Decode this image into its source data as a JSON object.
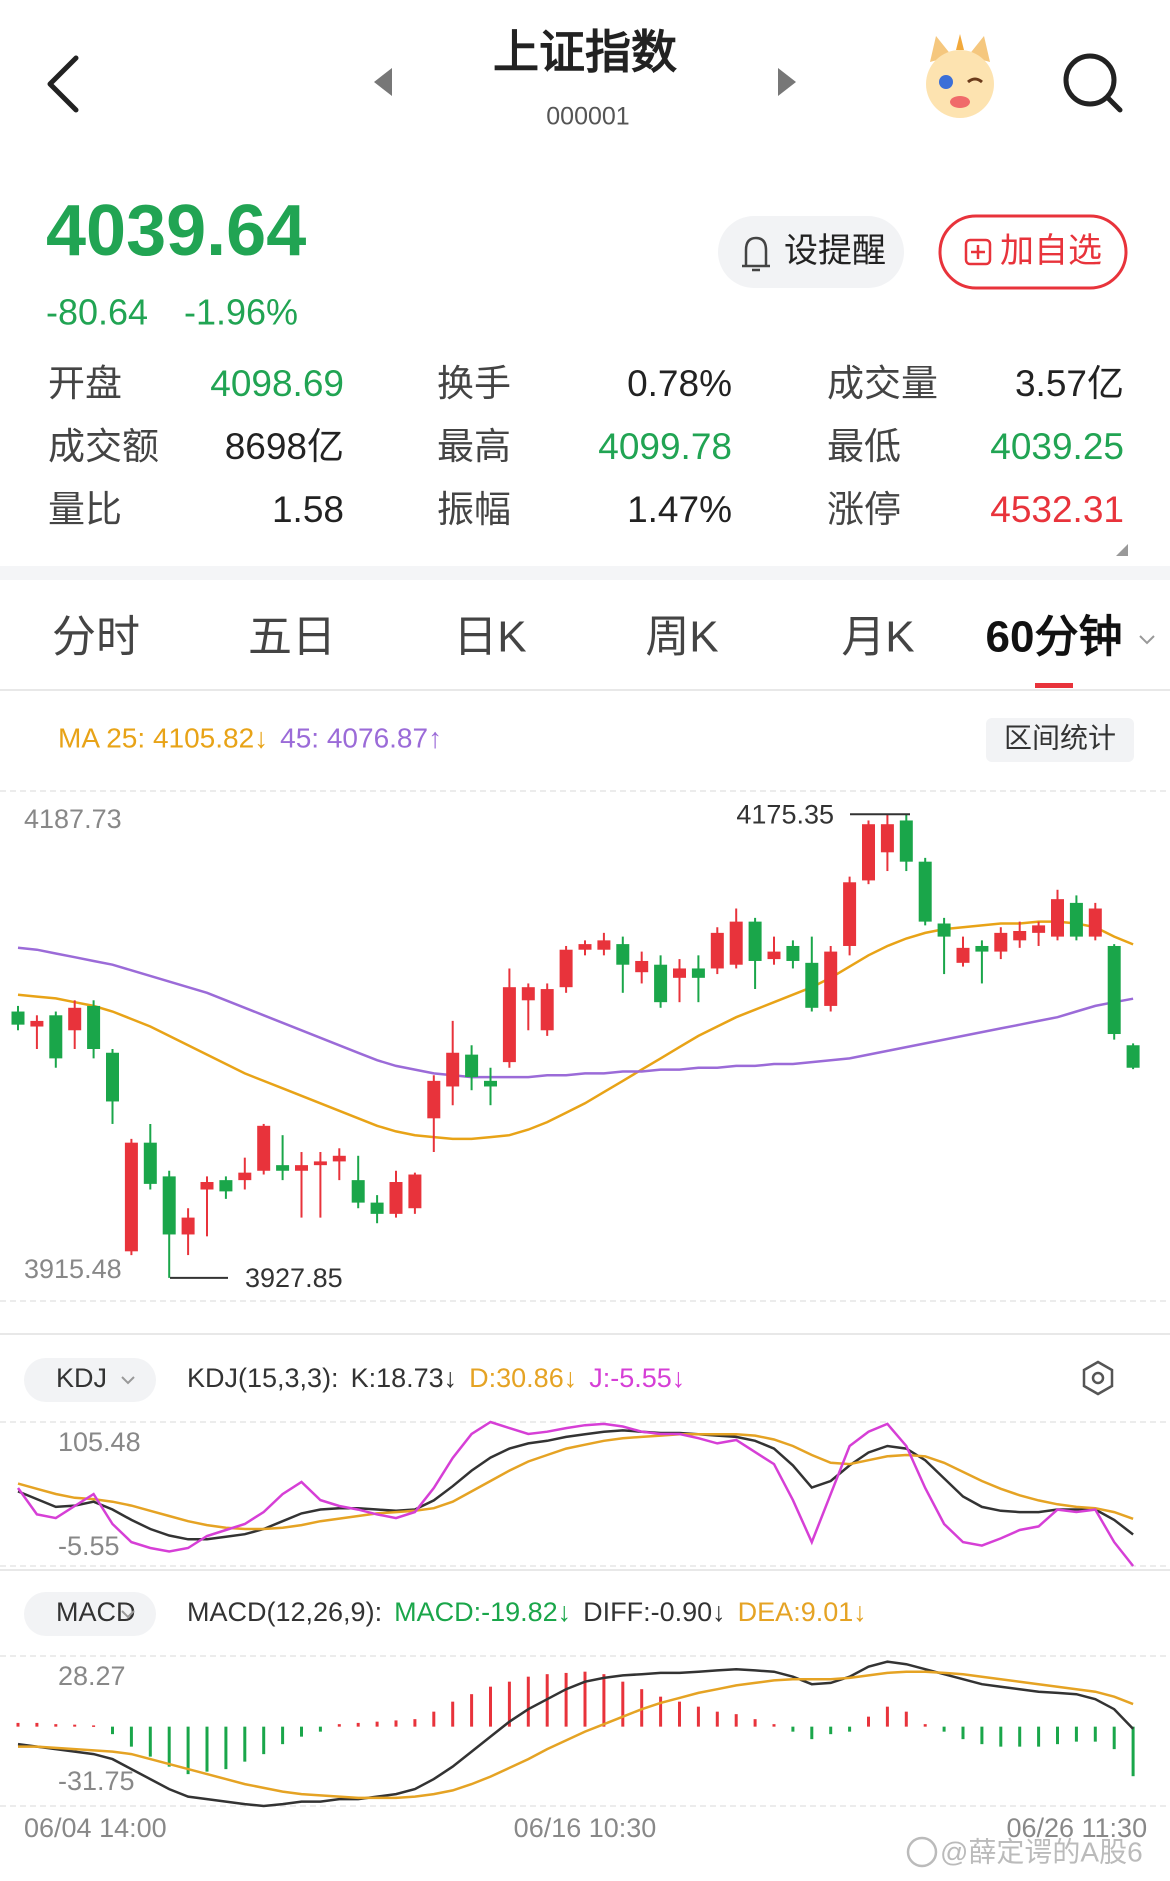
{
  "header": {
    "title": "上证指数",
    "code": "000001"
  },
  "quote": {
    "price": "4039.64",
    "change": "-80.64",
    "change_pct": "-1.96%",
    "color": "#21a453"
  },
  "buttons": {
    "alert": "设提醒",
    "watch": "加自选"
  },
  "stats": [
    {
      "label": "开盘",
      "value": "4098.69",
      "color": "#21a453"
    },
    {
      "label": "换手",
      "value": "0.78%",
      "color": "#222222"
    },
    {
      "label": "成交量",
      "value": "3.57亿",
      "color": "#222222"
    },
    {
      "label": "成交额",
      "value": "8698亿",
      "color": "#222222"
    },
    {
      "label": "最高",
      "value": "4099.78",
      "color": "#21a453"
    },
    {
      "label": "最低",
      "value": "4039.25",
      "color": "#21a453"
    },
    {
      "label": "量比",
      "value": "1.58",
      "color": "#222222"
    },
    {
      "label": "振幅",
      "value": "1.47%",
      "color": "#222222"
    },
    {
      "label": "涨停",
      "value": "4532.31",
      "color": "#e8333b"
    }
  ],
  "tabs": [
    "分时",
    "五日",
    "日K",
    "周K",
    "月K",
    "60分钟"
  ],
  "active_tab": 5,
  "watermark": "@薛定谔的A股6",
  "chart_data": [
    {
      "type": "candlestick",
      "legend": [
        {
          "text": "MA 25: 4105.82↓",
          "color": "#e8a317"
        },
        {
          "text": "45: 4076.87↑",
          "color": "#9b6bd8"
        }
      ],
      "button": "区间统计",
      "categories": [
        "06/04 14:00",
        null,
        null,
        null,
        null,
        null,
        null,
        null,
        null,
        null,
        null,
        null,
        null,
        null,
        null,
        null,
        null,
        null,
        null,
        null,
        null,
        null,
        null,
        null,
        null,
        null,
        null,
        null,
        null,
        null,
        "06/16 10:30",
        null,
        null,
        null,
        null,
        null,
        null,
        null,
        null,
        null,
        null,
        null,
        null,
        null,
        null,
        null,
        null,
        null,
        null,
        null,
        null,
        null,
        null,
        null,
        null,
        null,
        null,
        null,
        null,
        "06/26 11:30"
      ],
      "open": [
        4070,
        4062,
        4068,
        4060,
        4073,
        4048,
        3942,
        4000,
        3982,
        3951,
        3975,
        3980,
        3980,
        3985,
        3988,
        3985,
        3988,
        3990,
        3980,
        3968,
        3962,
        3965,
        4013,
        4030,
        4047,
        4033,
        4043,
        4076,
        4060,
        4083,
        4103,
        4103,
        4106,
        4091,
        4095,
        4088,
        4093,
        4093,
        4095,
        4118,
        4098,
        4105,
        4096,
        4073,
        4105,
        4140,
        4155,
        4172,
        4150,
        4117,
        4096,
        4105,
        4102,
        4108,
        4112,
        4110,
        4128,
        4110,
        4105,
        4052
      ],
      "high": [
        4073,
        4068,
        4070,
        4076,
        4076,
        4050,
        4002,
        4010,
        3985,
        3965,
        3982,
        3982,
        3992,
        4010,
        4004,
        3995,
        3995,
        3997,
        3993,
        3972,
        3985,
        3984,
        4036,
        4065,
        4052,
        4040,
        4093,
        4085,
        4085,
        4105,
        4108,
        4112,
        4110,
        4102,
        4100,
        4098,
        4100,
        4115,
        4125,
        4120,
        4110,
        4108,
        4110,
        4105,
        4142,
        4172,
        4175.35,
        4175,
        4152,
        4120,
        4110,
        4108,
        4115,
        4118,
        4118,
        4135,
        4132,
        4128,
        4106,
        4053
      ],
      "low": [
        4060,
        4050,
        4040,
        4050,
        4045,
        4010,
        3940,
        3975,
        3927.85,
        3940,
        3950,
        3970,
        3975,
        3983,
        3980,
        3960,
        3960,
        3980,
        3965,
        3957,
        3960,
        3962,
        3995,
        4020,
        4028,
        4020,
        4040,
        4060,
        4057,
        4080,
        4100,
        4100,
        4080,
        4085,
        4072,
        4075,
        4075,
        4090,
        4093,
        4082,
        4095,
        4093,
        4070,
        4070,
        4100,
        4138,
        4145,
        4145,
        4116,
        4090,
        4094,
        4085,
        4098,
        4104,
        4105,
        4108,
        4108,
        4108,
        4055,
        4039.25
      ],
      "close": [
        4063,
        4065,
        4045,
        4072,
        4050,
        4022,
        4000,
        3978,
        3951,
        3960,
        3979,
        3974,
        3984,
        4009,
        3985,
        3988,
        3990,
        3993,
        3968,
        3962,
        3979,
        3983,
        4033,
        4048,
        4035,
        4030,
        4083,
        4083,
        4082,
        4103,
        4106,
        4108,
        4095,
        4097,
        4075,
        4093,
        4088,
        4112,
        4118,
        4097,
        4102,
        4097,
        4072,
        4102,
        4139,
        4170,
        4170,
        4150,
        4118,
        4110,
        4104,
        4102,
        4112,
        4113,
        4116,
        4130,
        4110,
        4125,
        4058,
        4040
      ],
      "up_color": "#e8333b",
      "down_color": "#1aa64a",
      "lines": [
        {
          "color": "#e8a317",
          "values": [
            4079,
            4078,
            4077,
            4075,
            4073,
            4070,
            4066,
            4062,
            4057,
            4052,
            4047,
            4042,
            4037,
            4033,
            4029,
            4025,
            4021,
            4017,
            4013,
            4009,
            4006,
            4004,
            4003,
            4002,
            4002,
            4003,
            4004,
            4007,
            4011,
            4016,
            4021,
            4027,
            4033,
            4039,
            4045,
            4051,
            4057,
            4062,
            4067,
            4071,
            4075,
            4079,
            4083,
            4088,
            4094,
            4100,
            4105,
            4109,
            4112,
            4114,
            4115,
            4116,
            4117,
            4117,
            4118,
            4118,
            4117,
            4115,
            4110,
            4105.82
          ]
        },
        {
          "color": "#9b6bd8",
          "values": [
            4104,
            4103,
            4101,
            4099,
            4097,
            4095,
            4092,
            4089,
            4086,
            4083,
            4080,
            4076,
            4072,
            4068,
            4064,
            4060,
            4056,
            4052,
            4048,
            4044,
            4041,
            4039,
            4037,
            4036,
            4035,
            4035,
            4035,
            4035,
            4036,
            4036,
            4037,
            4037,
            4038,
            4038,
            4039,
            4039,
            4040,
            4040,
            4041,
            4041,
            4042,
            4042,
            4043,
            4044,
            4045,
            4047,
            4049,
            4051,
            4053,
            4055,
            4057,
            4059,
            4061,
            4063,
            4065,
            4067,
            4070,
            4073,
            4075,
            4076.87
          ]
        }
      ],
      "ylim": [
        3915.48,
        4187.73
      ],
      "yticks": [
        3915.48,
        4187.73
      ],
      "high_label": 4175.35,
      "low_label": 3927.85
    },
    {
      "type": "line",
      "selector": "KDJ",
      "params": "KDJ(15,3,3):",
      "series": [
        {
          "name": "K:18.73↓",
          "color": "#333333",
          "values": [
            52,
            46,
            40,
            41,
            44,
            38,
            30,
            23,
            18,
            15,
            15,
            17,
            19,
            23,
            29,
            35,
            38,
            39,
            39,
            38,
            37,
            38,
            45,
            56,
            68,
            78,
            85,
            89,
            91,
            94,
            96,
            98,
            99,
            98,
            97,
            97,
            96,
            95,
            94,
            91,
            85,
            72,
            55,
            60,
            72,
            82,
            87,
            85,
            76,
            62,
            48,
            40,
            37,
            36,
            36,
            38,
            38,
            38,
            30,
            18.73
          ]
        },
        {
          "name": "D:30.86↓",
          "color": "#e5a324",
          "values": [
            58,
            54,
            50,
            47,
            46,
            44,
            41,
            37,
            33,
            29,
            26,
            24,
            23,
            23,
            24,
            26,
            29,
            31,
            33,
            35,
            36,
            37,
            39,
            44,
            52,
            60,
            68,
            75,
            80,
            85,
            88,
            91,
            93,
            94,
            95,
            96,
            96,
            96,
            96,
            95,
            92,
            87,
            80,
            74,
            73,
            76,
            79,
            80,
            79,
            74,
            67,
            60,
            54,
            49,
            45,
            42,
            40,
            39,
            36,
            30.86
          ]
        },
        {
          "name": "J:-5.55↓",
          "color": "#d63fd6",
          "values": [
            54.6,
            34.2,
            31.4,
            40.7,
            49.9,
            26.8,
            12.9,
            8.3,
            5.6,
            8.3,
            17.6,
            22.2,
            26.8,
            36.1,
            49.9,
            59.2,
            45.3,
            40.7,
            37.9,
            34.2,
            31.4,
            36.1,
            54.6,
            77.7,
            96.2,
            105.48,
            100.8,
            96.2,
            98,
            100.8,
            103,
            104,
            102,
            98,
            96.2,
            96.2,
            93,
            89,
            91.6,
            82.3,
            73,
            45.3,
            12.9,
            49.9,
            87,
            98,
            104,
            87,
            54.6,
            26.8,
            12.9,
            10.2,
            15.7,
            22.2,
            25,
            37.9,
            36.1,
            37.9,
            12.9,
            -5.55
          ]
        }
      ],
      "ylim": [
        -5.55,
        105.48
      ],
      "yticks": [
        -5.55,
        105.48
      ]
    },
    {
      "type": "macd",
      "selector": "MACD",
      "params": "MACD(12,26,9):",
      "bars": {
        "name": "MACD:-19.82↓",
        "name_color": "#1aa64a",
        "up_color": "#e8333b",
        "down_color": "#1aa64a",
        "values": [
          1.5,
          1.5,
          1,
          0.8,
          0.5,
          -3,
          -8,
          -12,
          -16,
          -19,
          -18,
          -17,
          -14,
          -11,
          -7,
          -4,
          -2,
          1,
          1.5,
          2,
          2.5,
          3,
          6,
          10,
          13,
          16,
          18,
          20,
          21,
          21.5,
          22,
          21,
          18,
          15,
          12,
          10,
          8,
          6,
          5,
          3,
          1,
          -2,
          -5,
          -3,
          -2,
          4,
          8,
          6,
          1,
          -2,
          -5,
          -7,
          -8,
          -8,
          -8,
          -7,
          -6,
          -6,
          -9,
          -19.82
        ]
      },
      "series": [
        {
          "name": "DIFF:-0.90↓",
          "color": "#333333",
          "values": [
            -7,
            -8,
            -9,
            -10,
            -11,
            -13,
            -17,
            -21,
            -25,
            -28,
            -29,
            -30,
            -31,
            -31.75,
            -31,
            -30,
            -30,
            -29,
            -29,
            -28,
            -27,
            -25,
            -21,
            -16,
            -10,
            -4,
            2,
            7,
            11,
            15,
            18,
            19.5,
            20.5,
            21,
            21.5,
            21.5,
            22,
            22.5,
            23,
            22.5,
            22,
            20,
            17,
            17.5,
            20,
            24,
            26,
            25,
            23,
            21,
            19,
            17,
            16,
            15,
            14,
            13.5,
            13,
            11,
            7,
            -0.9
          ]
        },
        {
          "name": "DEA:9.01↓",
          "color": "#e5a324",
          "values": [
            -8,
            -8,
            -8.5,
            -9,
            -9.5,
            -10,
            -11,
            -13,
            -15,
            -17,
            -19,
            -21,
            -23,
            -24.5,
            -26,
            -27,
            -27.5,
            -28,
            -28.5,
            -28.5,
            -28.5,
            -28,
            -27,
            -25.5,
            -23,
            -20,
            -16.5,
            -13,
            -9,
            -5.5,
            -2,
            1,
            4,
            7,
            9.5,
            11.5,
            13.5,
            15,
            16.5,
            17.5,
            18.5,
            19,
            19,
            19,
            19.5,
            20.5,
            21.5,
            22,
            22,
            21.5,
            21,
            20,
            19,
            18,
            17,
            16,
            15,
            14,
            12,
            9.01
          ]
        }
      ],
      "ylim": [
        -31.75,
        28.27
      ],
      "yticks": [
        -31.75,
        28.27
      ]
    }
  ]
}
